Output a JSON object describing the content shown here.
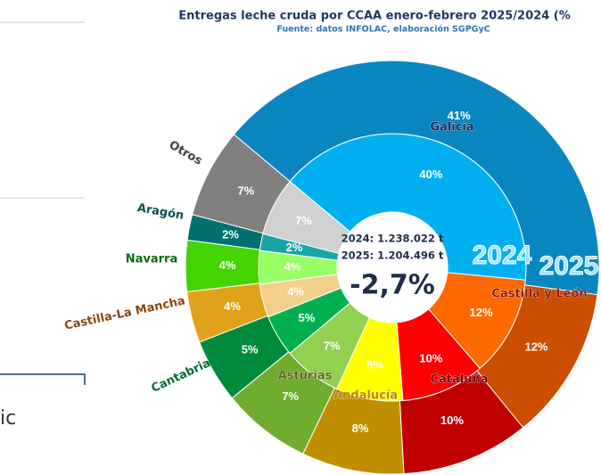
{
  "chart_data": {
    "type": "donut",
    "title": "Entregas leche cruda por CCAA enero-febrero 2025/2024 (%",
    "subtitle": "Fuente: datos INFOLAC, elaboración SGPGyC",
    "categories": [
      "Galicia",
      "Castilla y León",
      "Cataluña",
      "Andalucía",
      "Asturias",
      "Cantabria",
      "Castilla-La Mancha",
      "Navarra",
      "Aragón",
      "Otros"
    ],
    "category_colors": [
      "#0b2a5a",
      "#8b1a00",
      "#7a0000",
      "#b8860b",
      "#5a6b1a",
      "#0a6b35",
      "#8b4513",
      "#0a6b0a",
      "#0a4f4f",
      "#404040"
    ],
    "series": [
      {
        "name": "2024",
        "colors": [
          "#00b0f0",
          "#ff6a00",
          "#ff0000",
          "#ffff00",
          "#92d050",
          "#00b050",
          "#f2cf8a",
          "#99ff66",
          "#18a5a5",
          "#d0d0d0"
        ],
        "values": [
          40,
          12,
          10,
          8,
          7,
          5,
          4,
          4,
          2,
          7
        ],
        "value_labels": [
          "40%",
          "12%",
          "10%",
          "8%",
          "7%",
          "5%",
          "4%",
          "4%",
          "2%",
          "7%"
        ]
      },
      {
        "name": "2025",
        "colors": [
          "#0a86c0",
          "#cc4e00",
          "#c00000",
          "#bf8f00",
          "#70ad2f",
          "#008a3e",
          "#e1a21b",
          "#44d400",
          "#007070",
          "#808080"
        ],
        "values": [
          41,
          12,
          10,
          8,
          7,
          5,
          4,
          4,
          2,
          7
        ],
        "value_labels": [
          "41%",
          "12%",
          "10%",
          "8%",
          "7%",
          "5%",
          "4%",
          "4%",
          "2%",
          "7%"
        ]
      }
    ],
    "center_lines": [
      "2024: 1.238.022 t",
      "2025: 1.204.496 t"
    ],
    "center_change": "-2,7%"
  },
  "fragment_text": "ic"
}
